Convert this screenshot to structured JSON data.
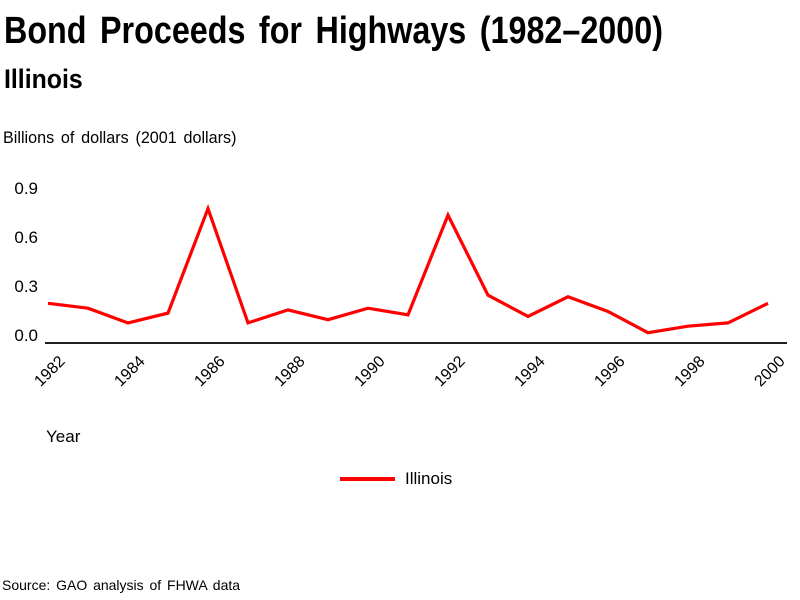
{
  "chart_data": {
    "type": "line",
    "title": "Bond Proceeds for Highways (1982–2000)",
    "subtitle": "Illinois",
    "unit_label": "Billions of dollars (2001 dollars)",
    "xlabel": "Year",
    "x": [
      1982,
      1983,
      1984,
      1985,
      1986,
      1987,
      1988,
      1989,
      1990,
      1991,
      1992,
      1993,
      1994,
      1995,
      1996,
      1997,
      1998,
      1999,
      2000
    ],
    "series": [
      {
        "name": "Illinois",
        "color": "#ff0000",
        "values": [
          0.2,
          0.17,
          0.08,
          0.14,
          0.78,
          0.08,
          0.16,
          0.1,
          0.17,
          0.13,
          0.74,
          0.25,
          0.12,
          0.24,
          0.15,
          0.02,
          0.06,
          0.08,
          0.2
        ]
      }
    ],
    "ylim": [
      0.0,
      0.9
    ],
    "y_ticks": [
      {
        "value": 0.0,
        "label": "0.0"
      },
      {
        "value": 0.3,
        "label": "0.3"
      },
      {
        "value": 0.6,
        "label": "0.6"
      },
      {
        "value": 0.9,
        "label": "0.9"
      }
    ],
    "x_tick_labels": [
      "1982",
      "1984",
      "1986",
      "1988",
      "1990",
      "1992",
      "1994",
      "1996",
      "1998",
      "2000"
    ],
    "grid": false,
    "legend_position": "bottom-center"
  },
  "legend": {
    "items": [
      {
        "label": "Illinois",
        "color": "#ff0000"
      }
    ]
  },
  "footer": {
    "source_note": "Source: GAO analysis of FHWA data"
  }
}
